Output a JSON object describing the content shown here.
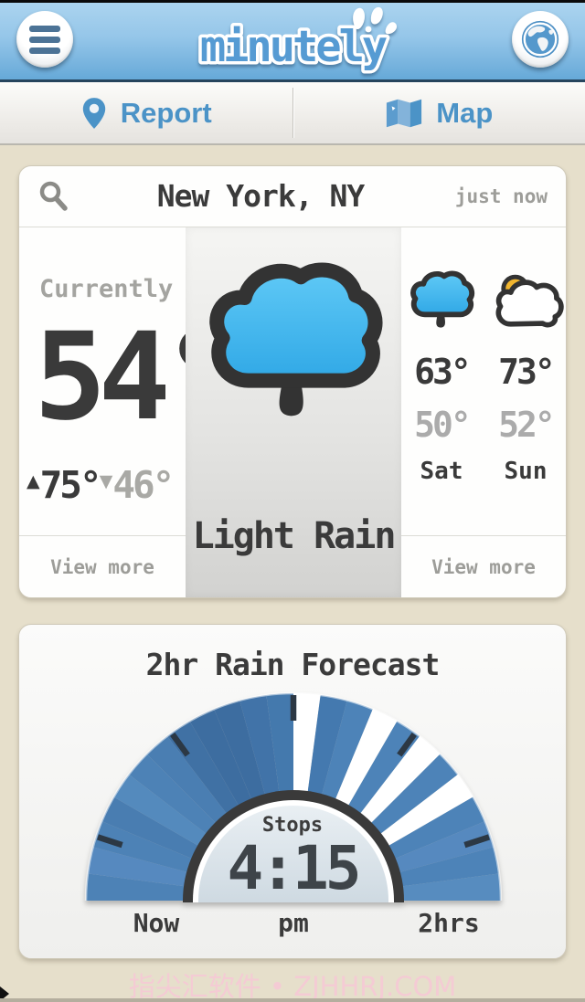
{
  "header": {
    "app_name": "minutely",
    "menu_icon": "hamburger",
    "globe_icon": "globe"
  },
  "nav": {
    "report_label": "Report",
    "map_label": "Map",
    "report_icon": "location-pin",
    "map_icon": "folded-map"
  },
  "location_card": {
    "search_icon": "magnifier",
    "title": "New York, NY",
    "updated": "just now",
    "currently_label": "Currently",
    "current_temp": "54°",
    "high_arrow": "▲",
    "high": "75°",
    "low_arrow": "▼",
    "low": "46°",
    "condition": "Light Rain",
    "condition_icon": "rain-cloud",
    "view_more": "View more",
    "forecast": [
      {
        "day": "Sat",
        "high": "63°",
        "low": "50°",
        "icon": "rain-cloud"
      },
      {
        "day": "Sun",
        "high": "73°",
        "low": "52°",
        "icon": "partly-cloudy"
      }
    ]
  },
  "rain_card": {
    "title": "2hr Rain Forecast",
    "stops_label": "Stops",
    "stop_time": "4:15",
    "axis_start": "Now",
    "axis_mid": "pm",
    "axis_end": "2hrs"
  },
  "watermark": "指尖汇软件 • ZJHHRJ.COM",
  "colors": {
    "accent_blue": "#4b93c7",
    "header_top": "#abd4ef",
    "header_bottom": "#66a9d8",
    "page_bg": "#e6dfcb",
    "dark_text": "#3b3b3b",
    "muted_text": "#9d9d99",
    "gauge_dark_ring": "#3a3a3a",
    "no_rain_color": "#ffffff",
    "watermark_pink": "#f4cbd4"
  },
  "chart_data": {
    "type": "gauge",
    "title": "2hr Rain Forecast",
    "span_minutes": 120,
    "start_label": "Now",
    "end_label": "2hrs",
    "center_label": "Stops",
    "center_value": "4:15 pm",
    "note": "blue wedges = rain expected, white wedges = rain stops; rain stops at 4:15 pm",
    "segments": [
      "#4d82b6",
      "#5689bf",
      "#4d82b6",
      "#497db1",
      "#548abd",
      "#4d82b6",
      "#4a7eb2",
      "#4071a4",
      "#3d6da0",
      "#3d6da0",
      "#4173a8",
      "#4479ad",
      "#ffffff",
      "#4479af",
      "#4d83b8",
      "#ffffff",
      "#4d83b8",
      "#ffffff",
      "#4d83b8",
      "#ffffff",
      "#4d83b8",
      "#5689bf",
      "#4d83b8",
      "#578cbf"
    ],
    "tick_angles_deg": [
      18,
      54,
      90,
      126,
      162
    ]
  }
}
